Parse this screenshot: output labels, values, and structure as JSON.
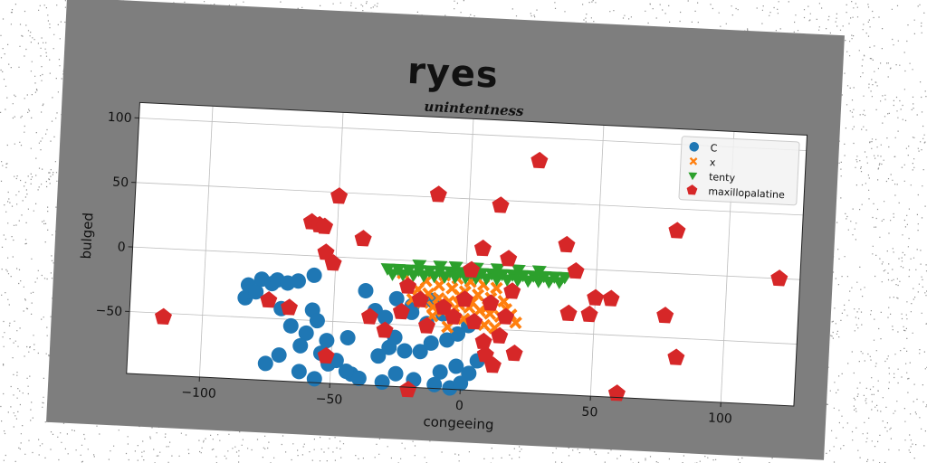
{
  "chart_data": {
    "type": "scatter",
    "title": "ryes",
    "subtitle": "unintentness",
    "xlabel": "congeeing",
    "ylabel": "bulged",
    "xlim": [
      -128,
      128
    ],
    "ylim": [
      -98,
      112
    ],
    "xticks": [
      -100,
      -50,
      0,
      50,
      100
    ],
    "yticks": [
      -50,
      0,
      50,
      100
    ],
    "grid": true,
    "legend_position": "top-right",
    "series": [
      {
        "name": "C",
        "marker": "circle",
        "color": "#1f77b4",
        "points": [
          [
            -83,
            -25
          ],
          [
            -84,
            -35
          ],
          [
            -82,
            -30
          ],
          [
            -80,
            -30
          ],
          [
            -78,
            -20
          ],
          [
            -74,
            -23
          ],
          [
            -72,
            -20
          ],
          [
            -68,
            -22
          ],
          [
            -64,
            -20
          ],
          [
            -58,
            -15
          ],
          [
            -70,
            -42
          ],
          [
            -66,
            -55
          ],
          [
            -58,
            -42
          ],
          [
            -56,
            -50
          ],
          [
            -60,
            -60
          ],
          [
            -54,
            -75
          ],
          [
            -51,
            -83
          ],
          [
            -48,
            -80
          ],
          [
            -42,
            -90
          ],
          [
            -39,
            -93
          ],
          [
            -32,
            -75
          ],
          [
            -28,
            -68
          ],
          [
            -26,
            -60
          ],
          [
            -22,
            -70
          ],
          [
            -16,
            -70
          ],
          [
            -12,
            -63
          ],
          [
            -6,
            -60
          ],
          [
            -2,
            -55
          ],
          [
            -38,
            -25
          ],
          [
            -34,
            -40
          ],
          [
            -30,
            -45
          ],
          [
            -20,
            -40
          ],
          [
            -14,
            -48
          ],
          [
            -70,
            -78
          ],
          [
            -75,
            -85
          ],
          [
            -62,
            -90
          ],
          [
            -56,
            -95
          ],
          [
            -44,
            -88
          ],
          [
            -30,
            -95
          ],
          [
            -25,
            -88
          ],
          [
            -18,
            -92
          ],
          [
            -10,
            -95
          ],
          [
            -4,
            -97
          ],
          [
            0,
            -93
          ],
          [
            3,
            -85
          ],
          [
            6,
            -75
          ],
          [
            -8,
            -85
          ],
          [
            -2,
            -80
          ],
          [
            -20,
            -35
          ],
          [
            -26,
            -30
          ],
          [
            -44,
            -62
          ],
          [
            -52,
            -65
          ],
          [
            -62,
            -70
          ],
          [
            -12,
            -30
          ],
          [
            -8,
            -40
          ],
          [
            2,
            -48
          ]
        ]
      },
      {
        "name": "x",
        "marker": "x",
        "color": "#ff7f0e",
        "points": [
          [
            -22,
            -20
          ],
          [
            -18,
            -22
          ],
          [
            -14,
            -25
          ],
          [
            -10,
            -28
          ],
          [
            -6,
            -30
          ],
          [
            -2,
            -32
          ],
          [
            2,
            -34
          ],
          [
            6,
            -36
          ],
          [
            10,
            -38
          ],
          [
            14,
            -40
          ],
          [
            -20,
            -30
          ],
          [
            -16,
            -32
          ],
          [
            -12,
            -35
          ],
          [
            -8,
            -38
          ],
          [
            -4,
            -40
          ],
          [
            0,
            -43
          ],
          [
            4,
            -45
          ],
          [
            8,
            -47
          ],
          [
            12,
            -49
          ],
          [
            -15,
            -15
          ],
          [
            -10,
            -18
          ],
          [
            -5,
            -20
          ],
          [
            0,
            -22
          ],
          [
            5,
            -24
          ],
          [
            10,
            -26
          ],
          [
            15,
            -28
          ],
          [
            -8,
            -10
          ],
          [
            -3,
            -12
          ],
          [
            2,
            -14
          ],
          [
            7,
            -16
          ],
          [
            12,
            -18
          ],
          [
            -6,
            -50
          ],
          [
            -2,
            -25
          ],
          [
            3,
            -30
          ],
          [
            9,
            -33
          ],
          [
            -12,
            -42
          ],
          [
            16,
            -34
          ],
          [
            18,
            -38
          ],
          [
            -24,
            -10
          ],
          [
            20,
            -44
          ]
        ]
      },
      {
        "name": "tenty",
        "marker": "triangle-down",
        "color": "#2ca02c",
        "points": [
          [
            -30,
            -7
          ],
          [
            -26,
            -7
          ],
          [
            -22,
            -7
          ],
          [
            -18,
            -7
          ],
          [
            -14,
            -7
          ],
          [
            -10,
            -7
          ],
          [
            -6,
            -7
          ],
          [
            -2,
            -7
          ],
          [
            2,
            -7
          ],
          [
            6,
            -7
          ],
          [
            10,
            -7
          ],
          [
            14,
            -7
          ],
          [
            18,
            -7
          ],
          [
            22,
            -7
          ],
          [
            26,
            -7
          ],
          [
            30,
            -7
          ],
          [
            34,
            -7
          ],
          [
            38,
            -7
          ],
          [
            -28,
            -11
          ],
          [
            -24,
            -11
          ],
          [
            -20,
            -11
          ],
          [
            -16,
            -11
          ],
          [
            -12,
            -11
          ],
          [
            -8,
            -11
          ],
          [
            -4,
            -11
          ],
          [
            0,
            -11
          ],
          [
            4,
            -11
          ],
          [
            8,
            -11
          ],
          [
            12,
            -11
          ],
          [
            16,
            -11
          ],
          [
            20,
            -11
          ],
          [
            24,
            -11
          ],
          [
            28,
            -11
          ],
          [
            32,
            -11
          ],
          [
            36,
            -11
          ],
          [
            -18,
            -3
          ],
          [
            -10,
            -3
          ],
          [
            -4,
            -3
          ],
          [
            4,
            -3
          ],
          [
            12,
            -3
          ],
          [
            20,
            -3
          ],
          [
            28,
            -3
          ]
        ]
      },
      {
        "name": "maxillopalatine",
        "marker": "pentagon",
        "color": "#d62728",
        "points": [
          [
            -115,
            -53
          ],
          [
            -75,
            -36
          ],
          [
            -67,
            -41
          ],
          [
            -60,
            26
          ],
          [
            -57,
            24
          ],
          [
            -55,
            23
          ],
          [
            -50,
            47
          ],
          [
            -54,
            3
          ],
          [
            -51,
            -5
          ],
          [
            -52,
            -77
          ],
          [
            -40,
            15
          ],
          [
            -36,
            -45
          ],
          [
            -30,
            -55
          ],
          [
            -22,
            -20
          ],
          [
            -24,
            -40
          ],
          [
            -20,
            -100
          ],
          [
            -17,
            -30
          ],
          [
            -14,
            -50
          ],
          [
            -12,
            52
          ],
          [
            -8,
            -35
          ],
          [
            0,
            -28
          ],
          [
            2,
            -5
          ],
          [
            6,
            12
          ],
          [
            10,
            -30
          ],
          [
            9,
            -70
          ],
          [
            12,
            -78
          ],
          [
            14,
            -55
          ],
          [
            12,
            46
          ],
          [
            16,
            5
          ],
          [
            18,
            -20
          ],
          [
            16,
            -40
          ],
          [
            20,
            -68
          ],
          [
            26,
            82
          ],
          [
            38,
            18
          ],
          [
            42,
            -2
          ],
          [
            40,
            -35
          ],
          [
            48,
            -35
          ],
          [
            50,
            -22
          ],
          [
            56,
            -22
          ],
          [
            60,
            -95
          ],
          [
            77,
            -33
          ],
          [
            80,
            33
          ],
          [
            82,
            -65
          ],
          [
            120,
            0
          ],
          [
            4,
            -45
          ],
          [
            8,
            -60
          ],
          [
            -4,
            -42
          ]
        ]
      }
    ]
  }
}
